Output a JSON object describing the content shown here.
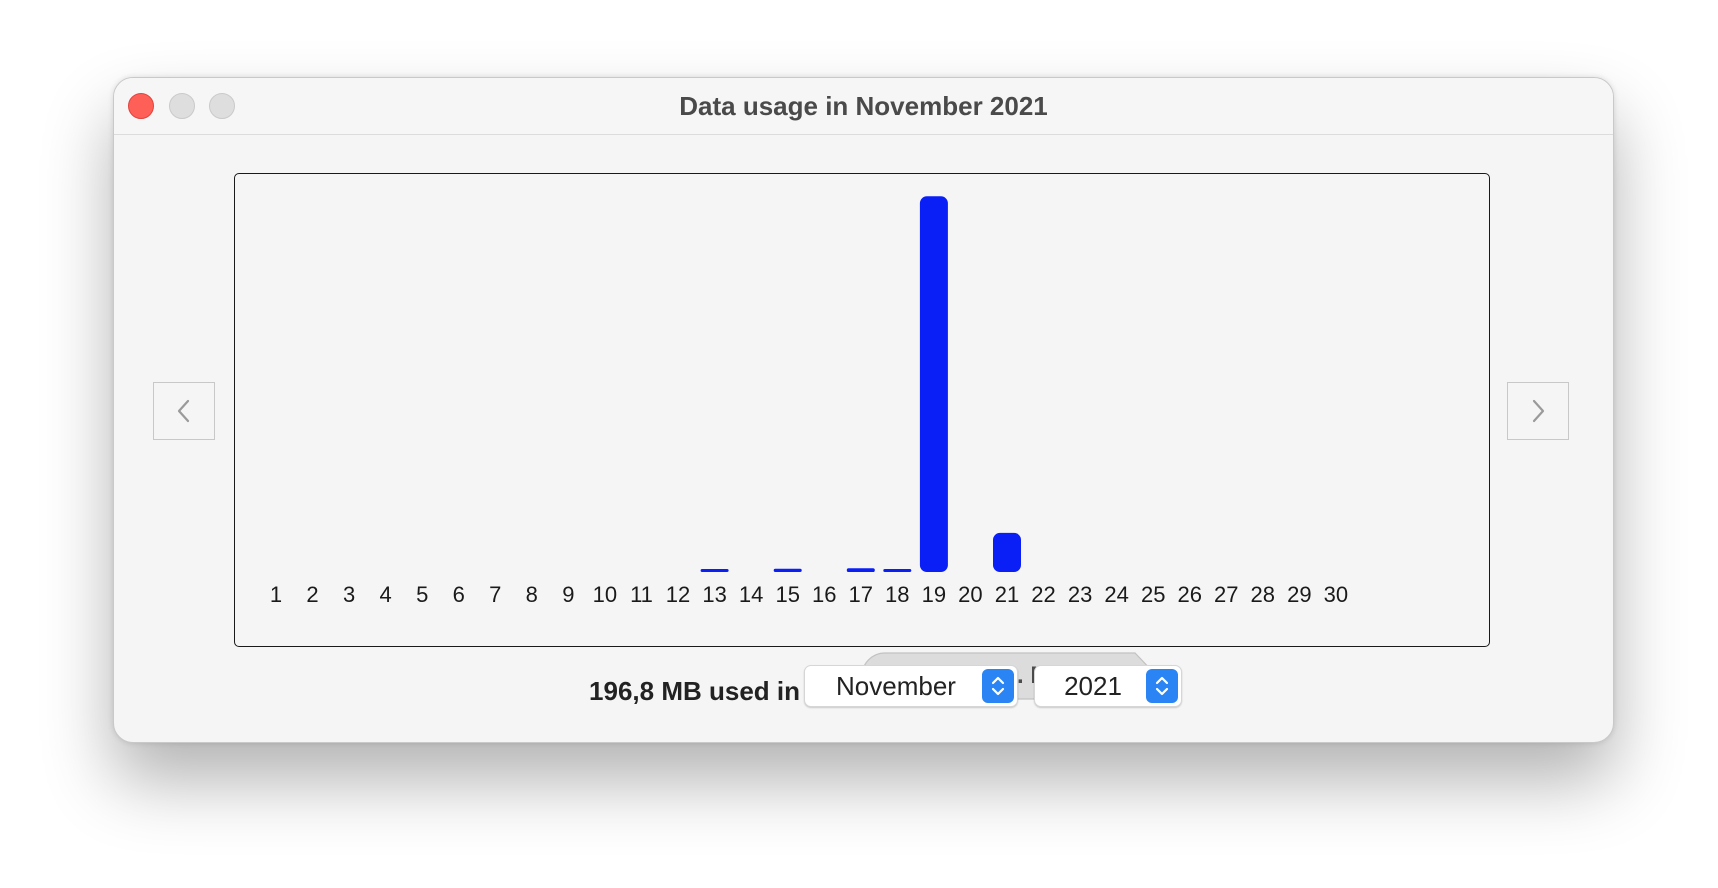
{
  "window": {
    "title": "Data usage in November 2021"
  },
  "icons": {
    "close": "close-button",
    "minimize": "minimize-button",
    "zoom": "zoom-button",
    "prev": "chevron-left-icon",
    "next": "chevron-right-icon",
    "stepper": "up-down-chevron-icon"
  },
  "colors": {
    "bar": "#0a1ff5",
    "select_accent": "#2a84f4"
  },
  "chart_data": {
    "type": "bar",
    "categories": [
      "1",
      "2",
      "3",
      "4",
      "5",
      "6",
      "7",
      "8",
      "9",
      "10",
      "11",
      "12",
      "13",
      "14",
      "15",
      "16",
      "17",
      "18",
      "19",
      "20",
      "21",
      "22",
      "23",
      "24",
      "25",
      "26",
      "27",
      "28",
      "29",
      "30"
    ],
    "values": [
      0,
      0,
      0,
      0,
      0,
      0,
      0,
      0,
      0,
      0,
      0,
      0,
      1.0,
      0,
      1.5,
      0,
      1.7,
      1.4,
      173,
      0,
      18,
      0,
      0,
      0,
      0,
      0,
      0,
      0,
      0,
      0
    ],
    "unit": "MB",
    "ylim": [
      0,
      175
    ],
    "grid": false,
    "tooltip": {
      "text": "18 MB on 21. Nov 2021",
      "day_index": 20
    }
  },
  "footer": {
    "total_label": "196,8 MB used in",
    "month": {
      "value": "November"
    },
    "year": {
      "value": "2021"
    }
  }
}
